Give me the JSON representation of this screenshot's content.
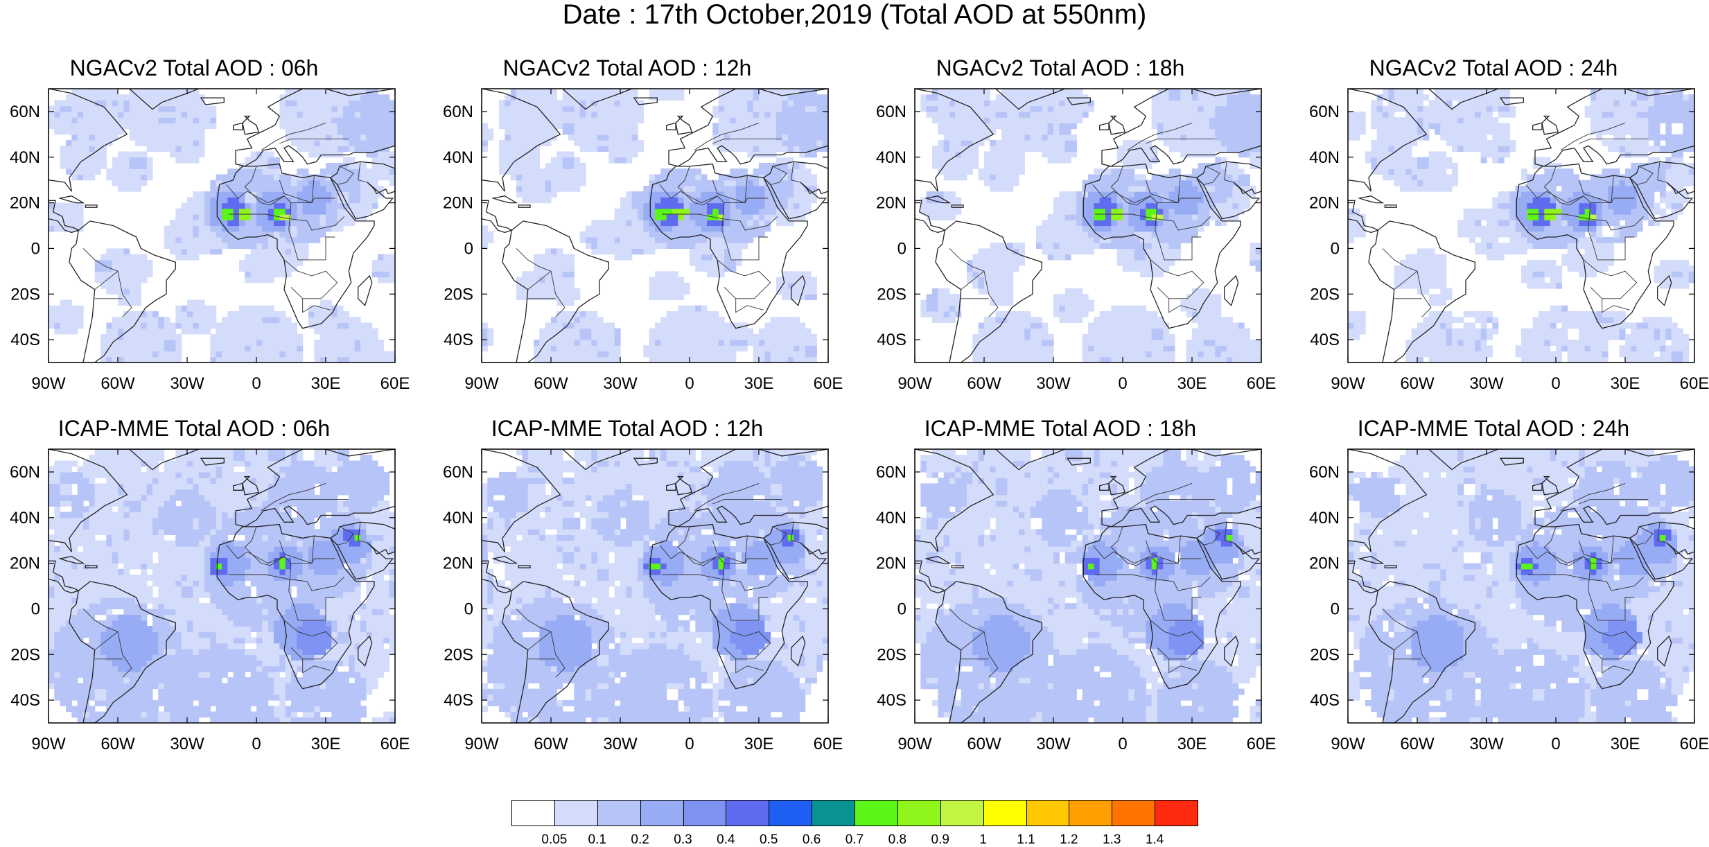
{
  "main_title": "Date : 17th October,2019 (Total AOD at 550nm)",
  "axes": {
    "lon_ticks": [
      "90W",
      "60W",
      "30W",
      "0",
      "30E",
      "60E"
    ],
    "lat_ticks": [
      "60N",
      "40N",
      "20N",
      "0",
      "20S",
      "40S"
    ],
    "lon_range": [
      -90,
      60
    ],
    "lat_range": [
      -50,
      70
    ]
  },
  "panels": [
    {
      "title": "NGACv2 Total AOD : 06h",
      "model": "NGACv2",
      "hour": 6
    },
    {
      "title": "NGACv2 Total AOD : 12h",
      "model": "NGACv2",
      "hour": 12
    },
    {
      "title": "NGACv2 Total AOD : 18h",
      "model": "NGACv2",
      "hour": 18
    },
    {
      "title": "NGACv2 Total AOD : 24h",
      "model": "NGACv2",
      "hour": 24
    },
    {
      "title": "ICAP-MME Total AOD : 06h",
      "model": "ICAP-MME",
      "hour": 6
    },
    {
      "title": "ICAP-MME Total AOD : 12h",
      "model": "ICAP-MME",
      "hour": 12
    },
    {
      "title": "ICAP-MME Total AOD : 18h",
      "model": "ICAP-MME",
      "hour": 18
    },
    {
      "title": "ICAP-MME Total AOD : 24h",
      "model": "ICAP-MME",
      "hour": 24
    }
  ],
  "colorbar": {
    "labels": [
      "0.05",
      "0.1",
      "0.2",
      "0.3",
      "0.4",
      "0.5",
      "0.6",
      "0.7",
      "0.8",
      "0.9",
      "1",
      "1.1",
      "1.2",
      "1.3",
      "1.4"
    ],
    "colors": [
      "#ffffff",
      "#d4dcfb",
      "#b7c4f7",
      "#97acf5",
      "#7f93f3",
      "#5f6cf0",
      "#1f5ff4",
      "#0a9393",
      "#5cf51a",
      "#8ff51a",
      "#c2f542",
      "#ffff00",
      "#ffc800",
      "#ff9f00",
      "#ff7300",
      "#ff2a10"
    ]
  }
}
